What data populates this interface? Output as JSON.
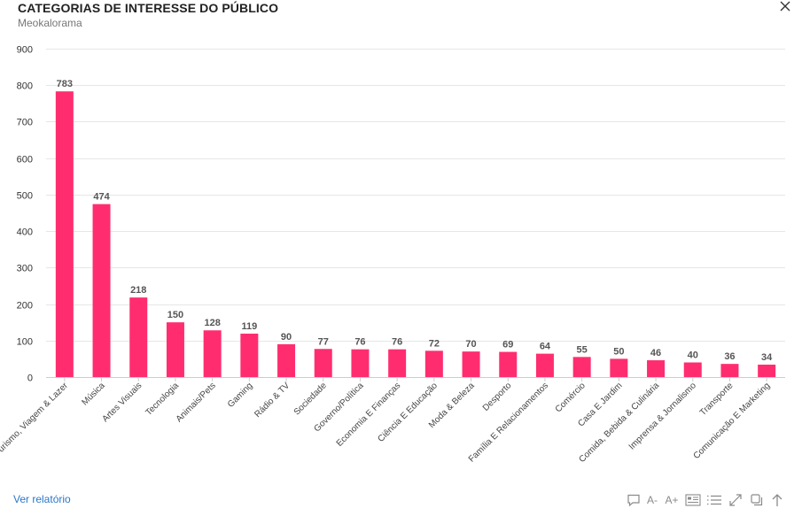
{
  "header": {
    "title": "CATEGORIAS DE INTERESSE DO PÚBLICO",
    "subtitle": "Meokalorama"
  },
  "footer": {
    "report_link": "Ver relatório",
    "font_decrease": "A-",
    "font_increase": "A+"
  },
  "icons": [
    "close-icon",
    "comment-icon",
    "font-decrease-icon",
    "font-increase-icon",
    "card-view-icon",
    "list-view-icon",
    "expand-icon",
    "copy-icon",
    "arrow-up-icon"
  ],
  "colors": {
    "bar": "#ff2d6f",
    "grid": "#e6e6e6",
    "link": "#2a77c9"
  },
  "chart_data": {
    "type": "bar",
    "title": "CATEGORIAS DE INTERESSE DO PÚBLICO",
    "subtitle": "Meokalorama",
    "xlabel": "",
    "ylabel": "",
    "ylim": [
      0,
      900
    ],
    "yticks": [
      0,
      100,
      200,
      300,
      400,
      500,
      600,
      700,
      800,
      900
    ],
    "grid": true,
    "legend": "none",
    "data_labels": true,
    "categories": [
      "Turismo, Viagem & Lazer",
      "Música",
      "Artes Visuais",
      "Tecnologia",
      "Animais/Pets",
      "Gaming",
      "Rádio & TV",
      "Sociedade",
      "Governo/Política",
      "Economia E Finanças",
      "Ciência E Educação",
      "Moda & Beleza",
      "Desporto",
      "Família E Relacionamentos",
      "Comércio",
      "Casa E Jardim",
      "Comida, Bebida & Culinária",
      "Imprensa & Jornalismo",
      "Transporte",
      "Comunicação E Marketing"
    ],
    "values": [
      783,
      474,
      218,
      150,
      128,
      119,
      90,
      77,
      76,
      76,
      72,
      70,
      69,
      64,
      55,
      50,
      46,
      40,
      36,
      34
    ]
  }
}
